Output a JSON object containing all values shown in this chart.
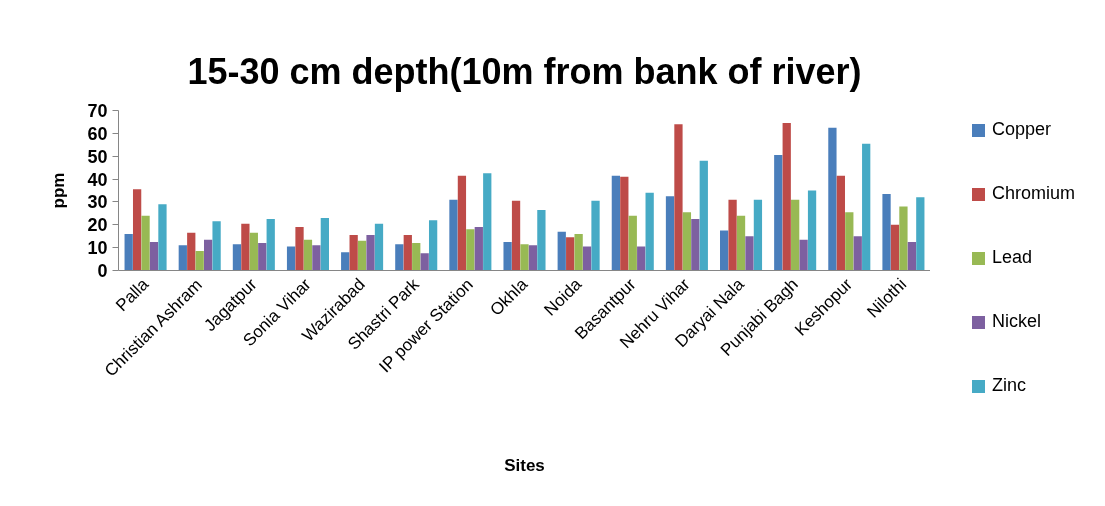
{
  "chart_data": {
    "type": "bar",
    "title": "15-30 cm depth(10m from bank of river)",
    "xlabel": "Sites",
    "ylabel": "ppm",
    "categories": [
      "Palla",
      "Christian Ashram",
      "Jagatpur",
      "Sonia Vihar",
      "Wazirabad",
      "Shastri Park",
      "IP power Station",
      "Okhla",
      "Noida",
      "Basantpur",
      "Nehru Vihar",
      "Daryai Nala",
      "Punjabi Bagh",
      "Keshopur",
      "Nilothi"
    ],
    "series": [
      {
        "name": "Copper",
        "color": "#4a7ebb",
        "values": [
          16,
          11,
          11.5,
          10.5,
          8,
          11.5,
          31,
          12.5,
          17,
          41.5,
          32.5,
          17.5,
          50.5,
          62.5,
          33.5
        ]
      },
      {
        "name": "Chromium",
        "color": "#be4b48",
        "values": [
          35.5,
          16.5,
          20.5,
          19,
          15.5,
          15.5,
          41.5,
          30.5,
          14.5,
          41,
          64,
          31,
          64.5,
          41.5,
          20
        ]
      },
      {
        "name": "Lead",
        "color": "#98b954",
        "values": [
          24,
          8.5,
          16.5,
          13.5,
          13,
          12,
          18,
          11.5,
          16,
          24,
          25.5,
          24,
          31,
          25.5,
          28
        ]
      },
      {
        "name": "Nickel",
        "color": "#7d60a0",
        "values": [
          12.5,
          13.5,
          12,
          11,
          15.5,
          7.5,
          19,
          11,
          10.5,
          10.5,
          22.5,
          15,
          13.5,
          15,
          12.5
        ]
      },
      {
        "name": "Zinc",
        "color": "#46aac5",
        "values": [
          29,
          21.5,
          22.5,
          23,
          20.5,
          22,
          42.5,
          26.5,
          30.5,
          34,
          48,
          31,
          35,
          55.5,
          32
        ]
      }
    ],
    "ylim": [
      0,
      70
    ],
    "yticks": [
      0,
      10,
      20,
      30,
      40,
      50,
      60,
      70
    ],
    "legend": "right"
  }
}
